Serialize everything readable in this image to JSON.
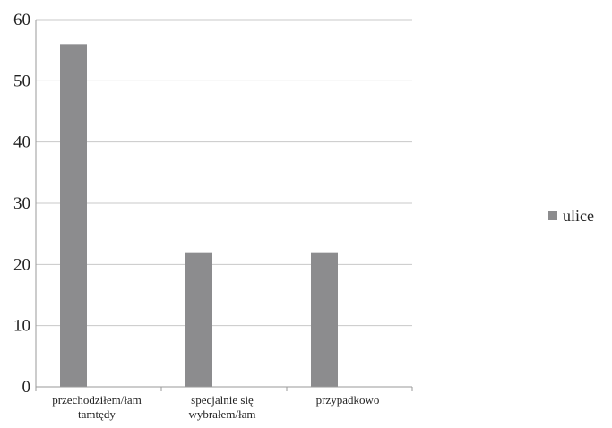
{
  "chart_data": {
    "type": "bar",
    "categories": [
      [
        "przechodziłem/łam",
        "tamtędy"
      ],
      [
        "specjalnie się",
        "wybrałem/łam"
      ],
      [
        "przypadkowo"
      ]
    ],
    "series": [
      {
        "name": "ulice",
        "values": [
          56,
          22,
          22
        ],
        "color": "#8c8c8e"
      }
    ],
    "ylim": [
      0,
      60
    ],
    "yticks": [
      0,
      10,
      20,
      30,
      40,
      50,
      60
    ],
    "grid": true,
    "legend": "right",
    "title": "",
    "xlabel": "",
    "ylabel": ""
  }
}
